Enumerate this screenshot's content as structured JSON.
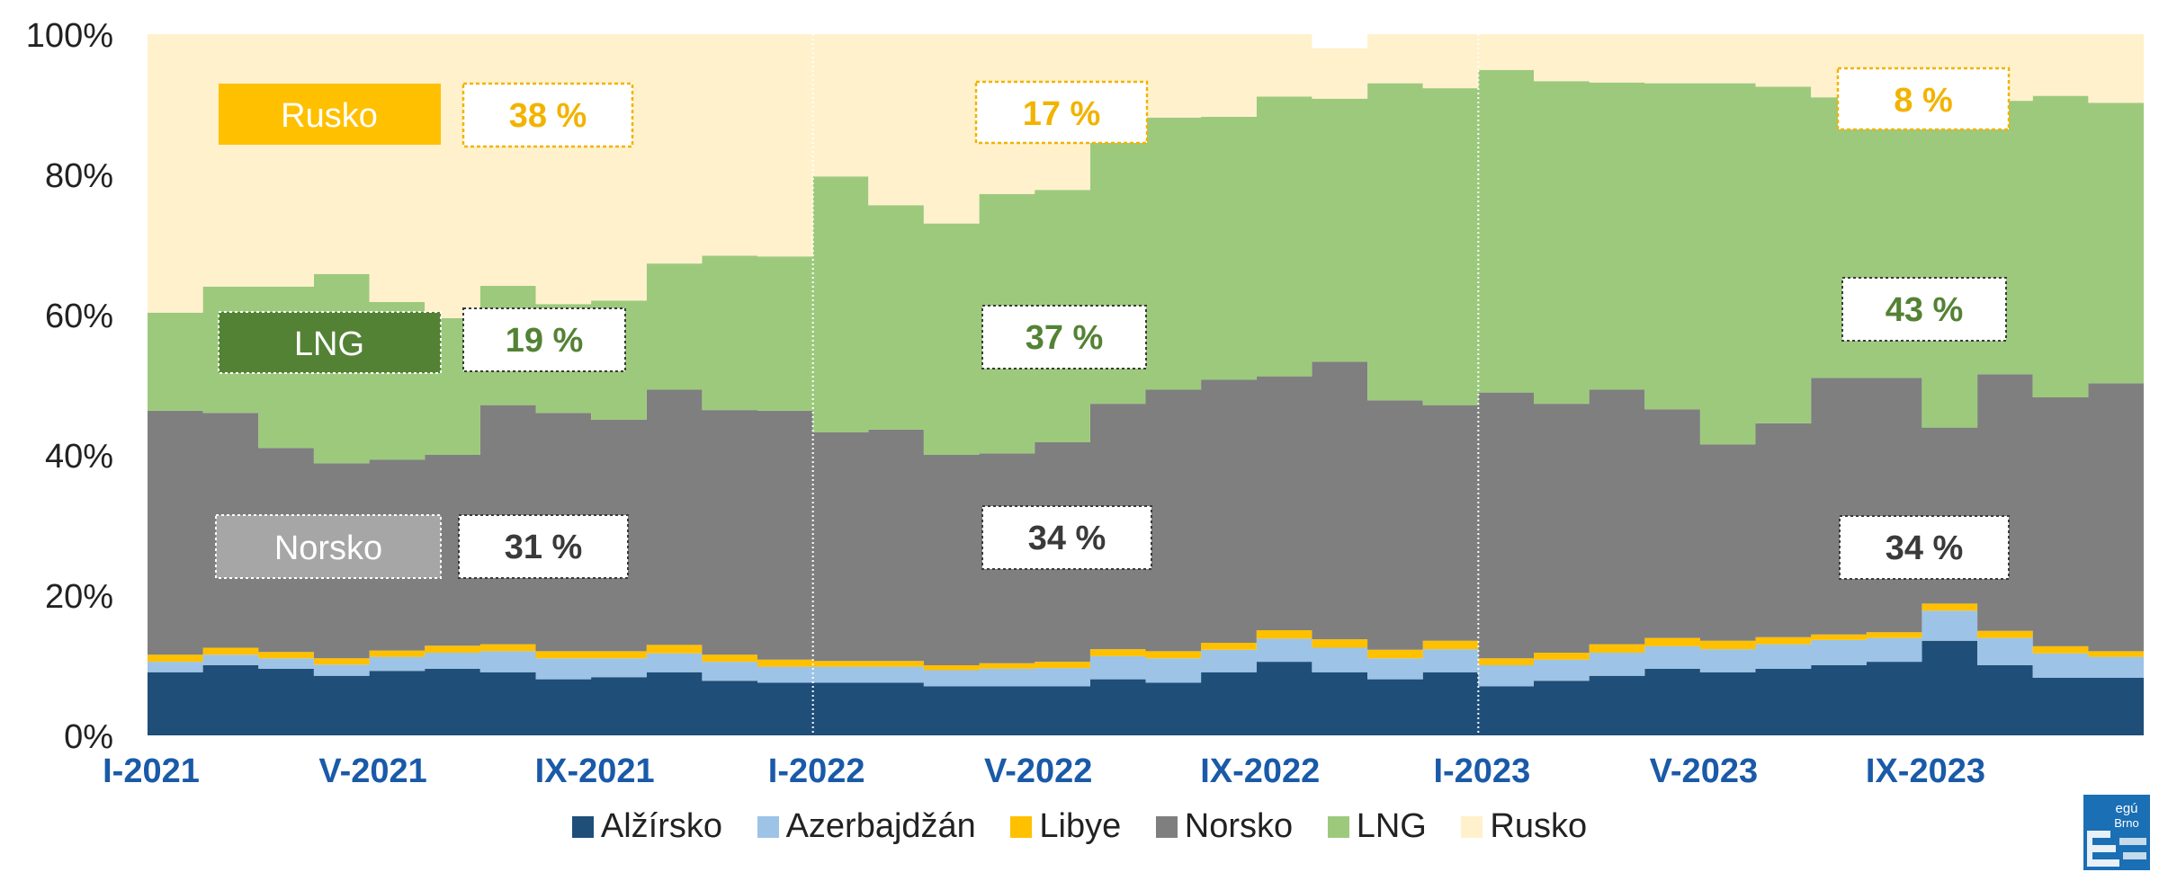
{
  "colors": {
    "alzirsko": "#1f4e79",
    "azerbajdzan": "#9dc3e6",
    "libye": "#ffc000",
    "norsko": "#7f7f7f",
    "lng": "#9dc97d",
    "rusko": "#fff1cc",
    "axis_label": "#1a5aa8",
    "rusko_text": "#f2b300",
    "lng_text": "#548235",
    "norsko_text": "#3a3a3a",
    "lng_label_bg": "#548235",
    "norsko_label_bg": "#a6a6a6"
  },
  "chart_data": {
    "type": "area",
    "stacked": true,
    "y_unit": "share of supply",
    "ylim": [
      0,
      100
    ],
    "yticks": [
      "0%",
      "20%",
      "40%",
      "60%",
      "80%",
      "100%"
    ],
    "x": [
      "I-2021",
      "II-2021",
      "III-2021",
      "IV-2021",
      "V-2021",
      "VI-2021",
      "VII-2021",
      "VIII-2021",
      "IX-2021",
      "X-2021",
      "XI-2021",
      "XII-2021",
      "I-2022",
      "II-2022",
      "III-2022",
      "IV-2022",
      "V-2022",
      "VI-2022",
      "VII-2022",
      "VIII-2022",
      "IX-2022",
      "X-2022",
      "XI-2022",
      "XII-2022",
      "I-2023",
      "II-2023",
      "III-2023",
      "IV-2023",
      "V-2023",
      "VI-2023",
      "VII-2023",
      "VIII-2023",
      "IX-2023",
      "X-2023",
      "XI-2023",
      "XII-2023"
    ],
    "xtick_labels": [
      {
        "index": 0,
        "text": "I-2021"
      },
      {
        "index": 4,
        "text": "V-2021"
      },
      {
        "index": 8,
        "text": "IX-2021"
      },
      {
        "index": 12,
        "text": "I-2022"
      },
      {
        "index": 16,
        "text": "V-2022"
      },
      {
        "index": 20,
        "text": "IX-2022"
      },
      {
        "index": 24,
        "text": "I-2023"
      },
      {
        "index": 28,
        "text": "V-2023"
      },
      {
        "index": 32,
        "text": "IX-2023"
      }
    ],
    "year_dividers_after_index": [
      11,
      23
    ],
    "series": [
      {
        "name": "Alžírsko",
        "color_key": "alzirsko",
        "values": [
          9.0,
          10.0,
          9.5,
          8.5,
          9.2,
          9.5,
          9.0,
          8.0,
          8.3,
          9.0,
          7.8,
          7.5,
          7.5,
          7.5,
          7.0,
          7.0,
          7.0,
          8.0,
          7.5,
          9.0,
          10.5,
          9.0,
          8.0,
          9.0,
          7.0,
          7.8,
          8.5,
          9.5,
          9.0,
          9.5,
          10.0,
          10.5,
          13.5,
          10.0,
          8.2,
          8.2
        ]
      },
      {
        "name": "Azerbajdžán",
        "color_key": "azerbajdzan",
        "values": [
          1.5,
          1.5,
          1.5,
          1.6,
          2.0,
          2.3,
          3.0,
          3.0,
          2.7,
          2.7,
          2.7,
          2.3,
          2.3,
          2.3,
          2.3,
          2.5,
          2.6,
          3.3,
          3.5,
          3.2,
          3.3,
          3.5,
          3.0,
          3.3,
          3.0,
          3.0,
          3.3,
          3.2,
          3.3,
          3.5,
          3.6,
          3.4,
          4.3,
          3.9,
          3.5,
          3.0
        ]
      },
      {
        "name": "Libye",
        "color_key": "libye",
        "values": [
          1.0,
          1.0,
          0.9,
          0.9,
          0.9,
          1.0,
          1.0,
          1.0,
          1.0,
          1.2,
          1.0,
          1.0,
          0.8,
          0.8,
          0.7,
          0.8,
          0.9,
          1.0,
          1.0,
          1.0,
          1.2,
          1.2,
          1.2,
          1.2,
          1.0,
          1.0,
          1.2,
          1.2,
          1.2,
          1.0,
          0.8,
          0.8,
          1.0,
          1.0,
          1.0,
          0.8
        ]
      },
      {
        "name": "Norsko",
        "color_key": "norsko",
        "values": [
          34.8,
          33.5,
          29.1,
          27.8,
          27.2,
          27.2,
          34.1,
          34.0,
          33.0,
          36.4,
          34.9,
          35.5,
          32.6,
          33.0,
          30.0,
          29.9,
          31.3,
          35.0,
          37.3,
          37.5,
          36.2,
          39.6,
          35.6,
          33.6,
          37.9,
          35.5,
          36.3,
          32.6,
          28.0,
          30.5,
          36.6,
          36.3,
          25.1,
          36.6,
          35.5,
          38.2
        ]
      },
      {
        "name": "LNG",
        "color_key": "lng",
        "values": [
          14.0,
          18.0,
          23.0,
          27.0,
          22.5,
          19.5,
          17.0,
          15.5,
          17.0,
          18.0,
          22.0,
          22.0,
          36.5,
          32.0,
          33.0,
          37.0,
          36.0,
          40.2,
          38.8,
          37.5,
          39.9,
          37.5,
          45.2,
          45.2,
          46.0,
          46.0,
          43.8,
          46.5,
          51.5,
          48.0,
          40.0,
          41.0,
          47.0,
          39.0,
          43.0,
          40.0
        ]
      },
      {
        "name": "Rusko",
        "color_key": "rusko",
        "values": [
          39.7,
          36.0,
          36.0,
          34.2,
          38.2,
          40.5,
          35.9,
          38.5,
          38.0,
          32.7,
          31.6,
          31.7,
          20.3,
          24.4,
          27.0,
          22.8,
          22.2,
          12.5,
          11.9,
          11.8,
          8.9,
          7.2,
          7.0,
          7.7,
          5.1,
          6.7,
          6.9,
          7.0,
          7.0,
          7.5,
          9.0,
          8.0,
          9.1,
          9.5,
          8.8,
          9.8
        ]
      }
    ]
  },
  "annotations": {
    "rusko_label": "Rusko",
    "lng_label": "LNG",
    "norsko_label": "Norsko",
    "rusko_2021": "38 %",
    "rusko_2022": "17 %",
    "rusko_2023": "8 %",
    "lng_2021": "19 %",
    "lng_2022": "37 %",
    "lng_2023": "43 %",
    "norsko_2021": "31 %",
    "norsko_2022": "34 %",
    "norsko_2023": "34 %"
  },
  "legend": [
    "Alžírsko",
    "Azerbajdžán",
    "Libye",
    "Norsko",
    "LNG",
    "Rusko"
  ],
  "logo": {
    "line1": "egú",
    "line2": "Brno"
  }
}
